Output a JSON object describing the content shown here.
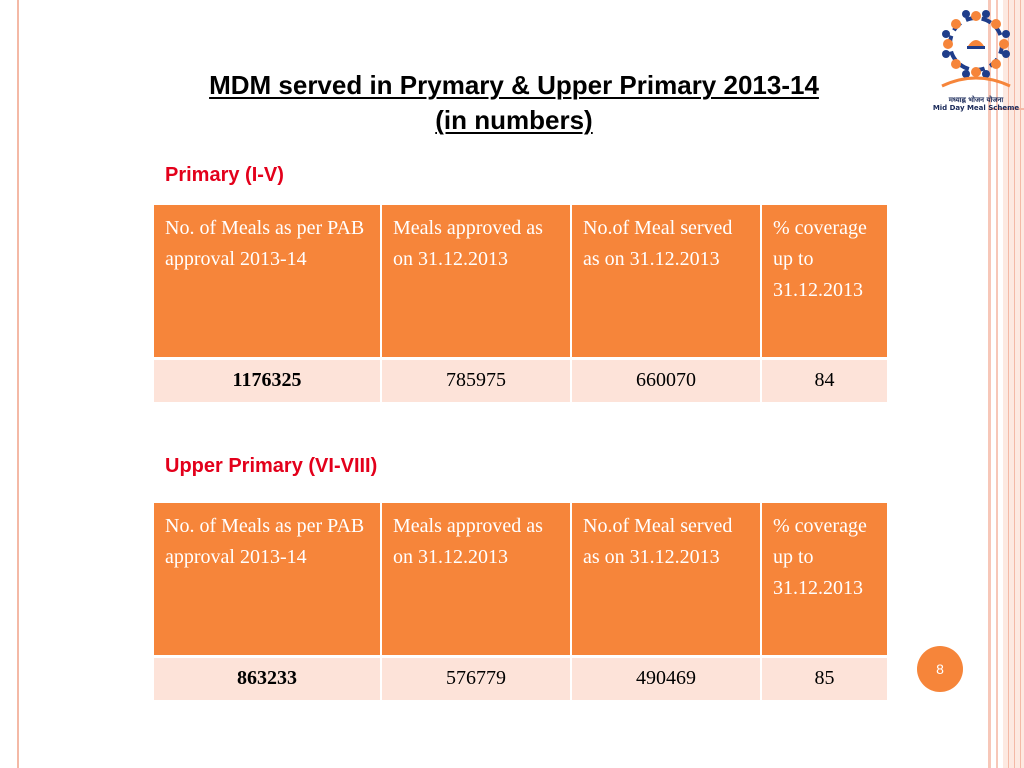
{
  "logo": {
    "icon": "mid-day-meal-logo-icon",
    "caption_hindi": "मध्याह्न भोजन योजना",
    "caption_english": "Mid Day Meal Scheme"
  },
  "slide": {
    "title_line1": "MDM served in Prymary & Upper Primary 2013-14",
    "title_line2": "(in numbers)",
    "page_number": "8"
  },
  "headers": [
    "No. of Meals as per  PAB approval 2013-14",
    "Meals approved as on 31.12.2013",
    "No.of Meal served as on 31.12.2013",
    "% coverage up to 31.12.2013"
  ],
  "primary": {
    "label": "Primary (I-V)",
    "values": [
      "1176325",
      "785975",
      "660070",
      "84"
    ]
  },
  "upper_primary": {
    "label": "Upper Primary (VI-VIII)",
    "values": [
      "863233",
      "576779",
      "490469",
      "85"
    ]
  },
  "colors": {
    "header_fill": "#f6853a",
    "row_fill": "#fde3d9",
    "section_label": "#e3001b"
  }
}
